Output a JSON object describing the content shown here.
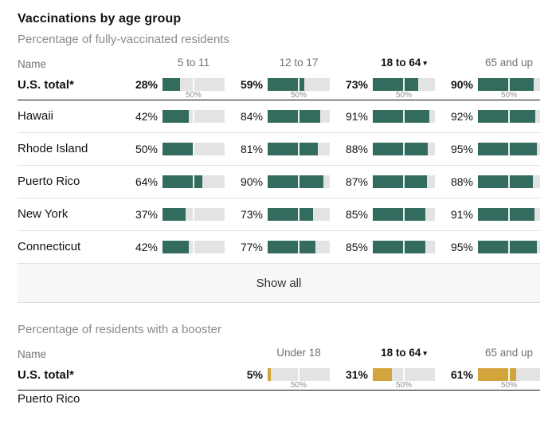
{
  "header": {
    "title": "Vaccinations by age group"
  },
  "colors": {
    "green": "#336c5e",
    "gold": "#d2a43c",
    "bar_background": "#e3e3e3",
    "dark_rule": "#121212",
    "light_rule": "#e2e2e2"
  },
  "sections": [
    {
      "id": "fully-vaccinated",
      "subtitle": "Percentage of fully-vaccinated residents",
      "name_header": "Name",
      "bar_color": "#336c5e",
      "midpoint_label": "50%",
      "columns": [
        {
          "label": "5 to 11"
        },
        {
          "label": "12 to 17"
        },
        {
          "label": "18 to 64",
          "arrow": "▾",
          "active": true
        },
        {
          "label": "65 and up"
        }
      ],
      "rows": [
        {
          "name": "U.S. total*",
          "total": true,
          "values": [
            28,
            59,
            73,
            90
          ]
        },
        {
          "name": "Hawaii",
          "values": [
            42,
            84,
            91,
            92
          ]
        },
        {
          "name": "Rhode Island",
          "values": [
            50,
            81,
            88,
            95
          ]
        },
        {
          "name": "Puerto Rico",
          "values": [
            64,
            90,
            87,
            88
          ]
        },
        {
          "name": "New York",
          "values": [
            37,
            73,
            85,
            91
          ]
        },
        {
          "name": "Connecticut",
          "values": [
            42,
            77,
            85,
            95
          ]
        }
      ],
      "show_all_label": "Show all"
    },
    {
      "id": "booster",
      "subtitle": "Percentage of residents with a booster",
      "name_header": "Name",
      "bar_color": "#d2a43c",
      "midpoint_label": "50%",
      "columns": [
        {
          "label": "Under 18"
        },
        {
          "label": "18 to 64",
          "arrow": "▾",
          "active": true
        },
        {
          "label": "65 and up"
        }
      ],
      "rows": [
        {
          "name": "U.S. total*",
          "total": true,
          "values": [
            5,
            31,
            61
          ]
        },
        {
          "name": "Puerto Rico",
          "partial": true,
          "values": []
        }
      ]
    }
  ],
  "chart_data": [
    {
      "type": "bar",
      "title": "Percentage of fully-vaccinated residents",
      "categories": [
        "5 to 11",
        "12 to 17",
        "18 to 64",
        "65 and up"
      ],
      "series": [
        {
          "name": "U.S. total*",
          "values": [
            28,
            59,
            73,
            90
          ]
        },
        {
          "name": "Hawaii",
          "values": [
            42,
            84,
            91,
            92
          ]
        },
        {
          "name": "Rhode Island",
          "values": [
            50,
            81,
            88,
            95
          ]
        },
        {
          "name": "Puerto Rico",
          "values": [
            64,
            90,
            87,
            88
          ]
        },
        {
          "name": "New York",
          "values": [
            37,
            73,
            85,
            91
          ]
        },
        {
          "name": "Connecticut",
          "values": [
            42,
            77,
            85,
            95
          ]
        }
      ],
      "unit": "%",
      "xlim": [
        0,
        100
      ],
      "midpoint_marker": 50,
      "sorted_by": "18 to 64"
    },
    {
      "type": "bar",
      "title": "Percentage of residents with a booster",
      "categories": [
        "Under 18",
        "18 to 64",
        "65 and up"
      ],
      "series": [
        {
          "name": "U.S. total*",
          "values": [
            5,
            31,
            61
          ]
        }
      ],
      "unit": "%",
      "xlim": [
        0,
        100
      ],
      "midpoint_marker": 50,
      "sorted_by": "18 to 64"
    }
  ]
}
